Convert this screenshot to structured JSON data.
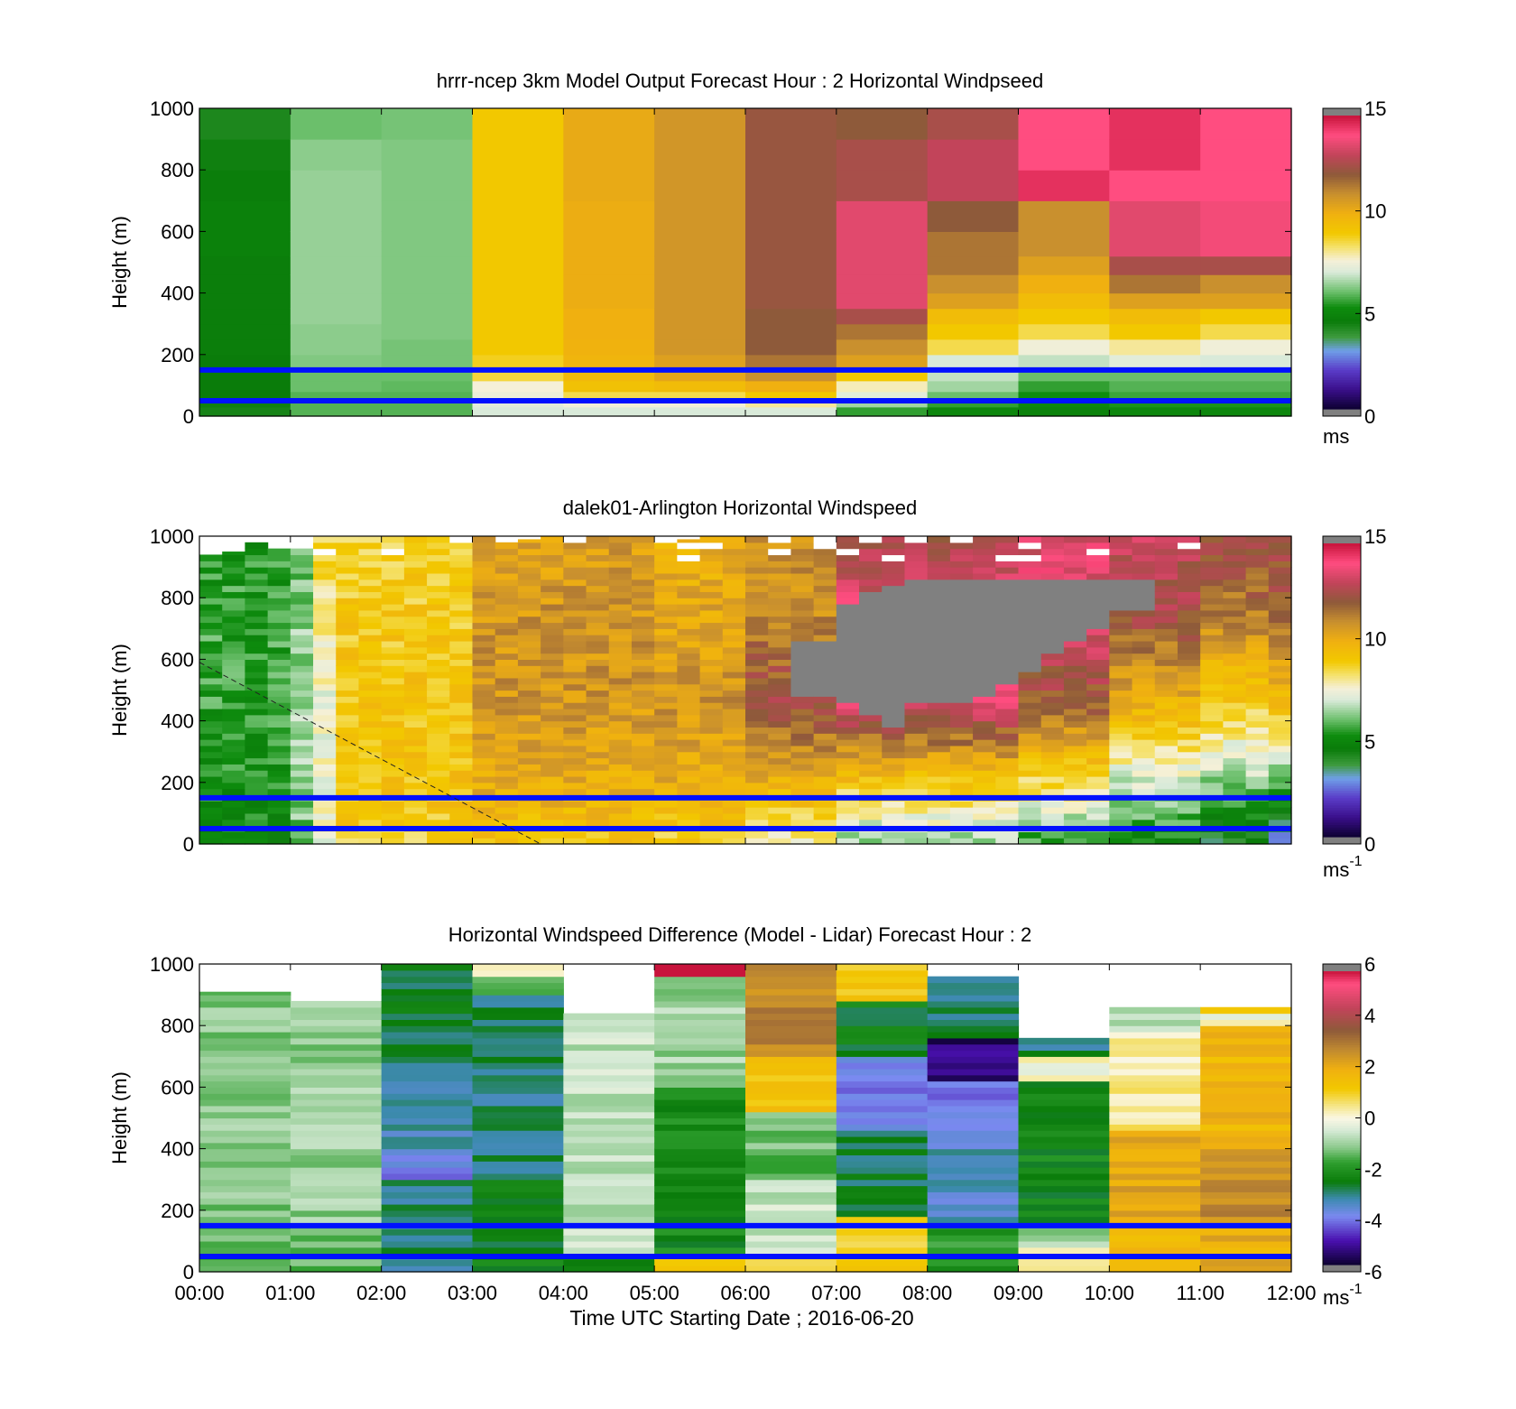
{
  "figure": {
    "xlabel": "Time UTC  Starting Date ; 2016-06-20",
    "xticks": [
      "00:00",
      "01:00",
      "02:00",
      "03:00",
      "04:00",
      "05:00",
      "06:00",
      "07:00",
      "08:00",
      "09:00",
      "10:00",
      "11:00",
      "12:00"
    ]
  },
  "chart_data": [
    {
      "type": "heatmap",
      "title": "hrrr-ncep 3km Model Output   Forecast Hour : 2 Horizontal Windpseed",
      "ylabel": "Height (m)",
      "x_range_hours": [
        0,
        12
      ],
      "ylim": [
        0,
        1000
      ],
      "yticks": [
        "0",
        "200",
        "400",
        "600",
        "800",
        "1000"
      ],
      "colorbar": {
        "ticks": [
          "0",
          "5",
          "10",
          "15"
        ],
        "range": [
          0,
          15
        ],
        "unit": "ms",
        "unit_superscript": ""
      },
      "reference_lines_m": [
        50,
        150
      ],
      "layers_m": [
        0,
        30,
        50,
        80,
        115,
        150,
        200,
        250,
        300,
        350,
        400,
        460,
        520,
        600,
        700,
        800,
        900,
        1000
      ],
      "columns": [
        {
          "x": 0,
          "values": [
            4.3,
            4.4,
            4.5,
            4.5,
            4.5,
            4.5,
            4.6,
            4.6,
            4.6,
            4.6,
            4.6,
            4.6,
            4.7,
            4.7,
            4.6,
            4.4,
            4.2
          ]
        },
        {
          "x": 1,
          "values": [
            5.8,
            5.8,
            5.8,
            6.0,
            6.0,
            6.2,
            6.3,
            6.3,
            6.4,
            6.4,
            6.4,
            6.4,
            6.4,
            6.4,
            6.4,
            6.3,
            6.0
          ]
        },
        {
          "x": 2,
          "values": [
            5.8,
            5.8,
            5.8,
            5.9,
            6.0,
            6.1,
            6.1,
            6.2,
            6.2,
            6.2,
            6.2,
            6.2,
            6.2,
            6.2,
            6.2,
            6.2,
            6.1
          ]
        },
        {
          "x": 3,
          "values": [
            7.0,
            7.2,
            7.4,
            7.6,
            8.6,
            8.8,
            9.0,
            9.0,
            9.0,
            9.0,
            9.0,
            9.0,
            9.0,
            9.0,
            9.0,
            9.0,
            9.0
          ]
        },
        {
          "x": 4,
          "values": [
            7.0,
            7.5,
            8.5,
            9.3,
            9.6,
            9.8,
            9.9,
            10.0,
            10.0,
            10.1,
            10.1,
            10.1,
            10.1,
            10.1,
            10.2,
            10.2,
            10.2
          ]
        },
        {
          "x": 5,
          "values": [
            7.0,
            7.5,
            8.5,
            9.5,
            10.3,
            10.5,
            10.8,
            10.8,
            10.8,
            10.8,
            10.8,
            10.8,
            10.8,
            10.8,
            10.8,
            10.8,
            10.8
          ]
        },
        {
          "x": 6,
          "values": [
            7.0,
            8.0,
            9.0,
            10.0,
            11.0,
            11.5,
            12.0,
            12.0,
            12.0,
            12.2,
            12.2,
            12.2,
            12.2,
            12.2,
            12.2,
            12.2,
            12.2
          ]
        },
        {
          "x": 7,
          "values": [
            5.5,
            6.5,
            7.2,
            7.8,
            9.0,
            10.5,
            11.0,
            11.5,
            12.5,
            13.5,
            13.5,
            13.5,
            13.5,
            13.5,
            12.5,
            12.5,
            12.0
          ]
        },
        {
          "x": 8,
          "values": [
            5.0,
            5.5,
            6.0,
            6.5,
            6.8,
            7.0,
            8.5,
            9.0,
            9.5,
            10.5,
            11.0,
            11.5,
            11.5,
            12.0,
            13.0,
            13.0,
            12.5
          ]
        },
        {
          "x": 9,
          "values": [
            4.8,
            5.0,
            5.2,
            5.5,
            6.0,
            6.8,
            7.5,
            8.5,
            9.0,
            9.5,
            10.0,
            10.5,
            11.0,
            11.0,
            14.5,
            14.0,
            14.0
          ]
        },
        {
          "x": 10,
          "values": [
            5.0,
            5.3,
            5.6,
            5.8,
            6.0,
            7.2,
            8.0,
            9.0,
            9.5,
            10.5,
            11.5,
            12.5,
            13.5,
            13.5,
            14.0,
            14.5,
            14.5
          ]
        },
        {
          "x": 11,
          "values": [
            5.0,
            5.3,
            5.6,
            5.8,
            6.0,
            7.0,
            7.5,
            8.5,
            9.0,
            10.5,
            11.0,
            12.5,
            13.8,
            13.8,
            14.0,
            14.0,
            14.0
          ]
        }
      ]
    },
    {
      "type": "heatmap",
      "title": "dalek01-Arlington  Horizontal Windspeed",
      "ylabel": "Height (m)",
      "x_range_hours": [
        0,
        12
      ],
      "ylim": [
        0,
        1000
      ],
      "yticks": [
        "0",
        "200",
        "400",
        "600",
        "800",
        "1000"
      ],
      "colorbar": {
        "ticks": [
          "0",
          "5",
          "10",
          "15"
        ],
        "range": [
          0,
          15
        ],
        "unit": "ms",
        "unit_superscript": "-1"
      },
      "reference_lines_m": [
        50,
        150
      ],
      "guide_line": {
        "from": [
          0.0,
          590
        ],
        "to": [
          3.75,
          0
        ]
      },
      "bin_hours": 0.25,
      "bin_m": 20,
      "column_tops_m": [
        940,
        950,
        980,
        960,
        960,
        1000,
        1000,
        1000,
        1000,
        1000,
        1000,
        1000,
        1000,
        980,
        990,
        1000,
        1000,
        1000,
        1000,
        1000,
        1000,
        990,
        1000,
        1000,
        1000,
        1000,
        1000,
        1000,
        1000,
        1000,
        1000,
        1000,
        1000,
        1000,
        1000,
        1000,
        1000,
        1000,
        1000,
        1000,
        1000,
        1000,
        1000,
        1000,
        1000,
        1000,
        1000,
        1000
      ],
      "column_profiles": [
        {
          "start_h": 0.0,
          "surface": 5.0,
          "low": 5.2,
          "mid": 5.5,
          "upper": 5.6,
          "top": 5.2
        },
        {
          "start_h": 1.0,
          "surface": 6.0,
          "low": 6.3,
          "mid": 6.6,
          "upper": 6.3,
          "top": 6.0
        },
        {
          "start_h": 1.25,
          "surface": 7.3,
          "low": 7.5,
          "mid": 7.3,
          "upper": 8.2,
          "top": 8.5
        },
        {
          "start_h": 1.5,
          "surface": 8.8,
          "low": 9.2,
          "mid": 9.2,
          "upper": 9.0,
          "top": 8.8
        },
        {
          "start_h": 3.0,
          "surface": 9.2,
          "low": 10.0,
          "mid": 10.8,
          "upper": 10.8,
          "top": 10.5
        },
        {
          "start_h": 5.0,
          "surface": 8.8,
          "low": 10.0,
          "mid": 10.8,
          "upper": 10.3,
          "top": 10.0
        },
        {
          "start_h": 6.0,
          "surface": 8.0,
          "low": 9.5,
          "mid": 12.5,
          "upper": 11.0,
          "top": 11.0
        },
        {
          "start_h": 7.0,
          "surface": 6.5,
          "low": 8.5,
          "mid": 13.5,
          "upper": 13.5,
          "top": 12.5
        },
        {
          "start_h": 9.0,
          "surface": 5.5,
          "low": 8.0,
          "mid": 12.0,
          "upper": 13.5,
          "top": 13.5
        },
        {
          "start_h": 10.0,
          "surface": 5.0,
          "low": 6.5,
          "mid": 10.0,
          "upper": 12.5,
          "top": 13.0
        },
        {
          "start_h": 11.0,
          "surface": 4.0,
          "low": 6.0,
          "mid": 9.0,
          "upper": 11.5,
          "top": 12.5
        },
        {
          "start_h": 11.75,
          "surface": 2.5,
          "low": 5.5,
          "mid": 9.5,
          "upper": 12.0,
          "top": 12.5
        }
      ],
      "saturated_region": {
        "note": "grey region above 15",
        "hours": [
          6.5,
          7.0,
          7.25,
          7.5,
          7.75,
          8.0,
          8.25,
          8.5,
          8.75,
          9.0,
          9.25,
          9.5,
          9.75,
          10.0
        ],
        "bottom_m": [
          480,
          460,
          420,
          380,
          450,
          460,
          450,
          480,
          520,
          560,
          610,
          650,
          700,
          750
        ],
        "top_m": [
          650,
          780,
          820,
          830,
          850,
          860,
          860,
          860,
          860,
          860,
          860,
          860,
          860,
          860
        ]
      }
    },
    {
      "type": "heatmap",
      "title": "Horizontal Windspeed Difference (Model - Lidar) Forecast Hour : 2",
      "ylabel": "Height (m)",
      "x_range_hours": [
        0,
        12
      ],
      "ylim": [
        0,
        1000
      ],
      "yticks": [
        "0",
        "200",
        "400",
        "600",
        "800",
        "1000"
      ],
      "colorbar": {
        "ticks": [
          "-6",
          "-4",
          "-2",
          "0",
          "2",
          "4",
          "6"
        ],
        "range": [
          -6,
          6
        ],
        "unit": "ms",
        "unit_superscript": "-1"
      },
      "reference_lines_m": [
        50,
        150
      ],
      "columns": [
        {
          "x": 0,
          "top_m": 910,
          "bands": [
            [
              0,
              150,
              -1.6
            ],
            [
              150,
              900,
              -1.2
            ],
            [
              900,
              910,
              -1.8
            ]
          ]
        },
        {
          "x": 1,
          "top_m": 880,
          "bands": [
            [
              0,
              150,
              -1.5
            ],
            [
              150,
              880,
              -1.1
            ]
          ]
        },
        {
          "x": 2,
          "top_m": 1000,
          "bands": [
            [
              0,
              300,
              -3.0
            ],
            [
              300,
              400,
              -4.0
            ],
            [
              400,
              700,
              -3.3
            ],
            [
              700,
              1000,
              -2.8
            ]
          ]
        },
        {
          "x": 3,
          "top_m": 1000,
          "bands": [
            [
              0,
              300,
              -2.5
            ],
            [
              300,
              900,
              -3.0
            ],
            [
              900,
              960,
              -1.5
            ],
            [
              960,
              1000,
              0.3
            ]
          ]
        },
        {
          "x": 4,
          "top_m": 840,
          "bands": [
            [
              0,
              60,
              -2.5
            ],
            [
              60,
              840,
              -0.7
            ]
          ]
        },
        {
          "x": 5,
          "top_m": 1000,
          "bands": [
            [
              0,
              60,
              1.5
            ],
            [
              60,
              600,
              -2.3
            ],
            [
              600,
              950,
              -1.0
            ],
            [
              950,
              1000,
              6.5
            ]
          ]
        },
        {
          "x": 6,
          "top_m": 1000,
          "bands": [
            [
              0,
              60,
              0.5
            ],
            [
              60,
              300,
              -0.6
            ],
            [
              300,
              520,
              -1.4
            ],
            [
              520,
              700,
              1.3
            ],
            [
              700,
              1000,
              2.8
            ]
          ]
        },
        {
          "x": 7,
          "top_m": 1000,
          "bands": [
            [
              0,
              180,
              1.0
            ],
            [
              180,
              450,
              -2.8
            ],
            [
              450,
              700,
              -4.0
            ],
            [
              700,
              880,
              -2.5
            ],
            [
              880,
              1000,
              1.3
            ]
          ]
        },
        {
          "x": 8,
          "top_m": 960,
          "bands": [
            [
              0,
              150,
              -2.0
            ],
            [
              150,
              400,
              -3.5
            ],
            [
              400,
              620,
              -4.0
            ],
            [
              620,
              760,
              -5.5
            ],
            [
              760,
              960,
              -3.0
            ]
          ]
        },
        {
          "x": 9,
          "top_m": 760,
          "bands": [
            [
              0,
              80,
              0.2
            ],
            [
              80,
              160,
              -1.0
            ],
            [
              160,
              620,
              -2.4
            ],
            [
              620,
              700,
              0.0
            ],
            [
              700,
              760,
              -3.0
            ]
          ]
        },
        {
          "x": 10,
          "top_m": 860,
          "bands": [
            [
              0,
              150,
              1.8
            ],
            [
              150,
              450,
              2.2
            ],
            [
              450,
              780,
              0.4
            ],
            [
              780,
              860,
              -0.8
            ]
          ]
        },
        {
          "x": 11,
          "top_m": 860,
          "bands": [
            [
              0,
              150,
              2.0
            ],
            [
              150,
              400,
              2.8
            ],
            [
              400,
              800,
              1.8
            ],
            [
              800,
              830,
              0.0
            ],
            [
              830,
              860,
              1.5
            ]
          ]
        }
      ]
    }
  ],
  "colors": {
    "reference_line": "#0011ff",
    "speed_colormap_stops": [
      [
        0.0,
        "#0c0030"
      ],
      [
        1.0,
        "#3a0f8a"
      ],
      [
        2.0,
        "#5a3cc8"
      ],
      [
        3.0,
        "#6fa0e8"
      ],
      [
        3.7,
        "#3d9a3d"
      ],
      [
        4.5,
        "#0a7c0a"
      ],
      [
        5.2,
        "#0e8c0e"
      ],
      [
        6.0,
        "#6bbf6b"
      ],
      [
        7.0,
        "#d9ead9"
      ],
      [
        7.6,
        "#f5f0d8"
      ],
      [
        8.3,
        "#f5e16a"
      ],
      [
        9.0,
        "#f2c800"
      ],
      [
        10.0,
        "#f0b010"
      ],
      [
        11.0,
        "#c9902e"
      ],
      [
        12.0,
        "#8e5a3a"
      ],
      [
        13.0,
        "#c2445a"
      ],
      [
        14.0,
        "#ff4d80"
      ],
      [
        15.0,
        "#c8143c"
      ]
    ],
    "diff_colormap_stops": [
      [
        -6,
        "#0c0030"
      ],
      [
        -5,
        "#4a10b0"
      ],
      [
        -4,
        "#7a8af0"
      ],
      [
        -3.3,
        "#3d8ab0"
      ],
      [
        -2.6,
        "#0a7c0a"
      ],
      [
        -1.8,
        "#2f9f2f"
      ],
      [
        -1.2,
        "#8cc98c"
      ],
      [
        -0.5,
        "#d6ead6"
      ],
      [
        0,
        "#fbf7e4"
      ],
      [
        0.5,
        "#f5e68a"
      ],
      [
        1.2,
        "#f2c800"
      ],
      [
        2.0,
        "#f0b010"
      ],
      [
        2.8,
        "#c08a30"
      ],
      [
        3.6,
        "#8e5a3a"
      ],
      [
        4.5,
        "#c2445a"
      ],
      [
        5.5,
        "#ff4d80"
      ],
      [
        6,
        "#c8143c"
      ]
    ],
    "saturated": "#808080"
  }
}
